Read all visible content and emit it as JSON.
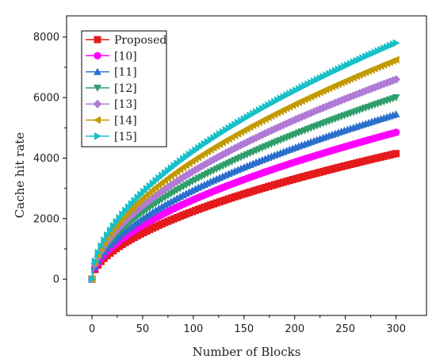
{
  "chart_data": {
    "type": "line",
    "title": "",
    "xlabel": "Number of Blocks",
    "ylabel": "Cache hit rate",
    "xlim": [
      -25,
      330
    ],
    "ylim": [
      -1200,
      8700
    ],
    "xticks": [
      0,
      50,
      100,
      150,
      200,
      250,
      300
    ],
    "yticks": [
      0,
      2000,
      4000,
      6000,
      8000
    ],
    "grid": false,
    "legend_position": "top-left",
    "marker_step": 3,
    "series": [
      {
        "name": "Proposed",
        "color": "#e41a1c",
        "marker": "square",
        "end_value": 4150,
        "exponent": 0.56
      },
      {
        "name": "[10]",
        "color": "#ff00ff",
        "marker": "circle",
        "end_value": 4850,
        "exponent": 0.56
      },
      {
        "name": "[11]",
        "color": "#2a6fcd",
        "marker": "triangle-up",
        "end_value": 5450,
        "exponent": 0.56
      },
      {
        "name": "[12]",
        "color": "#2e9e6b",
        "marker": "triangle-down",
        "end_value": 6000,
        "exponent": 0.56
      },
      {
        "name": "[13]",
        "color": "#b07ad6",
        "marker": "diamond",
        "end_value": 6600,
        "exponent": 0.56
      },
      {
        "name": "[14]",
        "color": "#c29a00",
        "marker": "triangle-left",
        "end_value": 7250,
        "exponent": 0.56
      },
      {
        "name": "[15]",
        "color": "#17c0c9",
        "marker": "triangle-right",
        "end_value": 7800,
        "exponent": 0.56
      }
    ]
  }
}
